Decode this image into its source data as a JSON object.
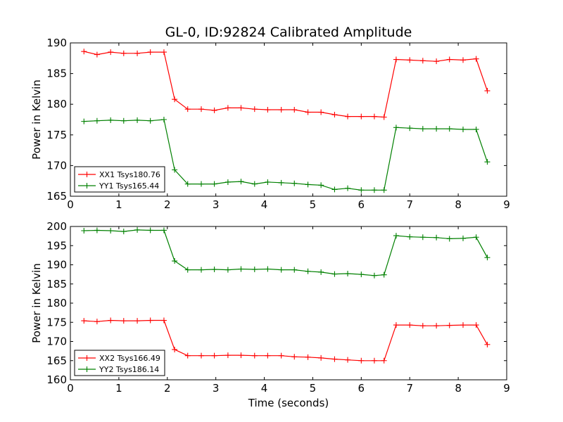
{
  "chart_data": {
    "type": "line",
    "title": "GL-0, ID:92824 Calibrated Amplitude",
    "xlabel": "Time (seconds)",
    "xlim": [
      0,
      9
    ],
    "xticks": [
      "0",
      "1",
      "2",
      "3",
      "4",
      "5",
      "6",
      "7",
      "8",
      "9"
    ],
    "legend_position": "lower-left",
    "grid": false,
    "x": [
      0.28,
      0.55,
      0.83,
      1.1,
      1.38,
      1.65,
      1.93,
      2.2,
      2.48,
      2.75,
      3.03,
      3.3,
      3.58,
      3.85,
      4.13,
      4.4,
      4.68,
      4.95,
      5.23,
      5.5,
      5.78,
      6.05,
      6.33,
      6.6,
      6.88,
      7.15,
      7.43,
      7.7,
      7.98,
      8.25,
      8.53,
      8.8
    ],
    "panels": [
      {
        "ylabel": "Power in Kelvin",
        "ylim": [
          165,
          190
        ],
        "yticks": [
          "165",
          "170",
          "175",
          "180",
          "185",
          "190"
        ],
        "series": [
          {
            "name": "XX1 Tsys180.76",
            "color": "#ff0000",
            "x": [
              0.28,
              0.55,
              0.83,
              1.1,
              1.38,
              1.65,
              1.93,
              2.15,
              2.42,
              2.7,
              2.97,
              3.25,
              3.52,
              3.8,
              4.07,
              4.35,
              4.62,
              4.9,
              5.17,
              5.45,
              5.72,
              6.0,
              6.27,
              6.47,
              6.72,
              7.0,
              7.27,
              7.55,
              7.82,
              8.1,
              8.37,
              8.6
            ],
            "values": [
              188.6,
              188.1,
              188.5,
              188.3,
              188.3,
              188.5,
              188.5,
              180.8,
              179.2,
              179.2,
              179.0,
              179.4,
              179.4,
              179.2,
              179.1,
              179.1,
              179.1,
              178.7,
              178.7,
              178.3,
              178.0,
              178.0,
              178.0,
              177.9,
              187.3,
              187.2,
              187.1,
              187.0,
              187.3,
              187.2,
              187.4,
              182.2
            ]
          },
          {
            "name": "YY1 Tsys165.44",
            "color": "#008000",
            "x": [
              0.28,
              0.55,
              0.83,
              1.1,
              1.38,
              1.65,
              1.93,
              2.15,
              2.42,
              2.7,
              2.97,
              3.25,
              3.52,
              3.8,
              4.07,
              4.35,
              4.62,
              4.9,
              5.17,
              5.45,
              5.72,
              6.0,
              6.27,
              6.47,
              6.72,
              7.0,
              7.27,
              7.55,
              7.82,
              8.1,
              8.37,
              8.6
            ],
            "values": [
              177.2,
              177.3,
              177.4,
              177.3,
              177.4,
              177.3,
              177.5,
              169.3,
              167.0,
              167.0,
              167.0,
              167.3,
              167.4,
              167.0,
              167.3,
              167.2,
              167.1,
              166.9,
              166.8,
              166.1,
              166.3,
              166.0,
              166.0,
              166.0,
              176.2,
              176.1,
              176.0,
              176.0,
              176.0,
              175.9,
              175.9,
              170.6
            ]
          }
        ]
      },
      {
        "ylabel": "Power in Kelvin",
        "ylim": [
          160,
          200
        ],
        "yticks": [
          "160",
          "165",
          "170",
          "175",
          "180",
          "185",
          "190",
          "195",
          "200"
        ],
        "series": [
          {
            "name": "XX2 Tsys166.49",
            "color": "#ff0000",
            "x": [
              0.28,
              0.55,
              0.83,
              1.1,
              1.38,
              1.65,
              1.93,
              2.15,
              2.42,
              2.7,
              2.97,
              3.25,
              3.52,
              3.8,
              4.07,
              4.35,
              4.62,
              4.9,
              5.17,
              5.45,
              5.72,
              6.0,
              6.27,
              6.47,
              6.72,
              7.0,
              7.27,
              7.55,
              7.82,
              8.1,
              8.37,
              8.6
            ],
            "values": [
              175.4,
              175.2,
              175.5,
              175.4,
              175.4,
              175.5,
              175.5,
              167.9,
              166.3,
              166.3,
              166.3,
              166.4,
              166.4,
              166.3,
              166.3,
              166.3,
              166.0,
              165.9,
              165.7,
              165.4,
              165.2,
              165.0,
              165.0,
              165.0,
              174.3,
              174.3,
              174.1,
              174.1,
              174.2,
              174.3,
              174.3,
              169.2
            ]
          },
          {
            "name": "YY2 Tsys186.14",
            "color": "#008000",
            "x": [
              0.28,
              0.55,
              0.83,
              1.1,
              1.38,
              1.65,
              1.93,
              2.15,
              2.42,
              2.7,
              2.97,
              3.25,
              3.52,
              3.8,
              4.07,
              4.35,
              4.62,
              4.9,
              5.17,
              5.45,
              5.72,
              6.0,
              6.27,
              6.47,
              6.72,
              7.0,
              7.27,
              7.55,
              7.82,
              8.1,
              8.37,
              8.6
            ],
            "values": [
              198.9,
              199.0,
              198.9,
              198.7,
              199.1,
              199.0,
              199.0,
              191.0,
              188.7,
              188.7,
              188.8,
              188.7,
              188.9,
              188.8,
              188.9,
              188.7,
              188.7,
              188.3,
              188.1,
              187.6,
              187.7,
              187.5,
              187.2,
              187.4,
              197.6,
              197.3,
              197.2,
              197.1,
              196.8,
              196.9,
              197.2,
              191.9
            ]
          }
        ]
      }
    ]
  }
}
